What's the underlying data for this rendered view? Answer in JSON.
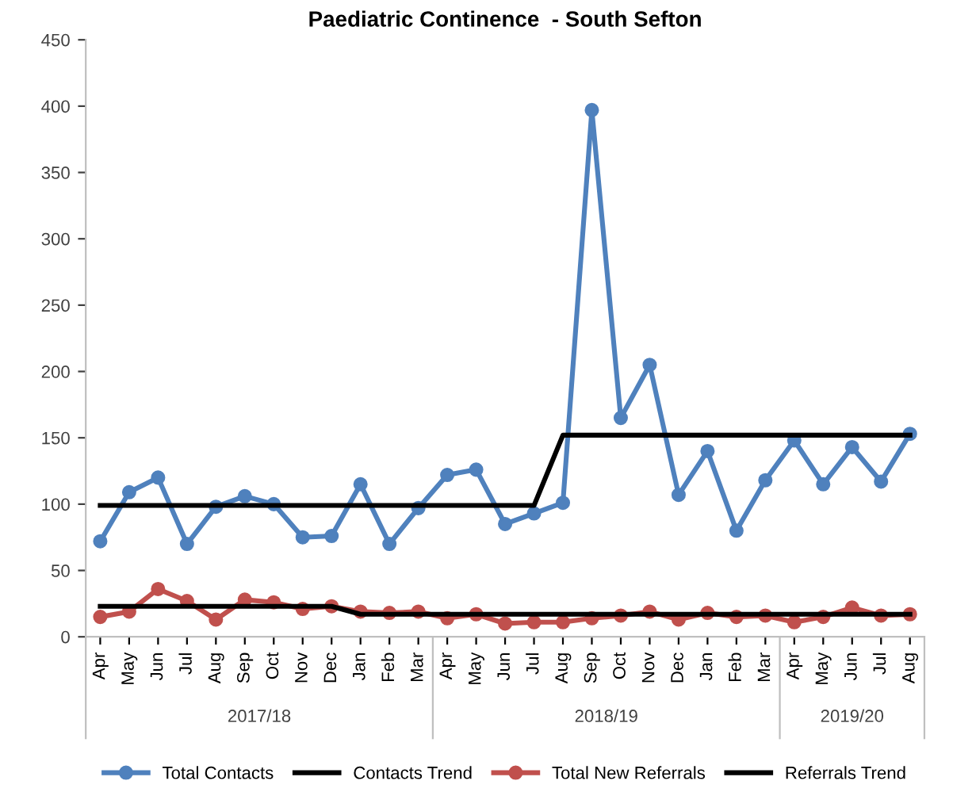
{
  "chart_data": {
    "type": "line",
    "title": "Paediatric Continence  - South Sefton",
    "categories": [
      "Apr",
      "May",
      "Jun",
      "Jul",
      "Aug",
      "Sep",
      "Oct",
      "Nov",
      "Dec",
      "Jan",
      "Feb",
      "Mar",
      "Apr",
      "May",
      "Jun",
      "Jul",
      "Aug",
      "Sep",
      "Oct",
      "Nov",
      "Dec",
      "Jan",
      "Feb",
      "Mar",
      "Apr",
      "May",
      "Jun",
      "Jul",
      "Aug"
    ],
    "annotations": [
      "2017/18",
      "2018/19",
      "2019/20"
    ],
    "ylim": [
      0,
      450
    ],
    "yticks": [
      0,
      50,
      100,
      150,
      200,
      250,
      300,
      350,
      400,
      450
    ],
    "grid": false,
    "legend": "bottom",
    "series": [
      {
        "name": "Total Contacts",
        "color": "#4f81bd",
        "marker": "circle",
        "values": [
          72,
          109,
          120,
          70,
          98,
          106,
          100,
          75,
          76,
          115,
          70,
          97,
          122,
          126,
          85,
          93,
          101,
          397,
          165,
          205,
          107,
          140,
          80,
          118,
          148,
          115,
          143,
          117,
          153
        ]
      },
      {
        "name": "Contacts Trend",
        "color": "#000000",
        "marker": "none",
        "values": [
          99,
          99,
          99,
          99,
          99,
          99,
          99,
          99,
          99,
          99,
          99,
          99,
          99,
          99,
          99,
          99,
          152,
          152,
          152,
          152,
          152,
          152,
          152,
          152,
          152,
          152,
          152,
          152,
          152
        ]
      },
      {
        "name": "Total New Referrals",
        "color": "#c0504d",
        "marker": "circle",
        "values": [
          15,
          19,
          36,
          27,
          13,
          28,
          26,
          21,
          23,
          19,
          18,
          19,
          14,
          17,
          10,
          11,
          11,
          14,
          16,
          19,
          13,
          18,
          15,
          16,
          11,
          15,
          22,
          16,
          17
        ]
      },
      {
        "name": "Referrals Trend",
        "color": "#000000",
        "marker": "none",
        "values": [
          23,
          23,
          23,
          23,
          23,
          23,
          23,
          23,
          23,
          17,
          17,
          17,
          17,
          17,
          17,
          17,
          17,
          17,
          17,
          17,
          17,
          17,
          17,
          17,
          17,
          17,
          17,
          17,
          17
        ]
      }
    ]
  }
}
